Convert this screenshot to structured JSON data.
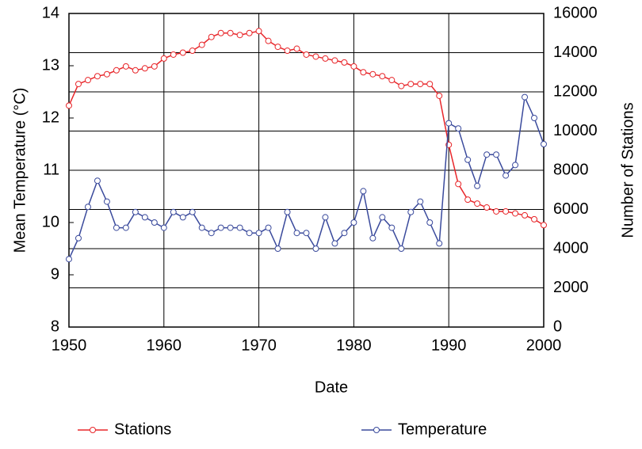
{
  "chart_data": {
    "type": "line",
    "x_label": "Date",
    "y_label": "Mean Temperature (°C)",
    "y2_label": "Number of Stations",
    "x": [
      1950,
      1951,
      1952,
      1953,
      1954,
      1955,
      1956,
      1957,
      1958,
      1959,
      1960,
      1961,
      1962,
      1963,
      1964,
      1965,
      1966,
      1967,
      1968,
      1969,
      1970,
      1971,
      1972,
      1973,
      1974,
      1975,
      1976,
      1977,
      1978,
      1979,
      1980,
      1981,
      1982,
      1983,
      1984,
      1985,
      1986,
      1987,
      1988,
      1989,
      1990,
      1991,
      1992,
      1993,
      1994,
      1995,
      1996,
      1997,
      1998,
      1999,
      2000
    ],
    "series": [
      {
        "name": "Stations",
        "color": "#e8262a",
        "axis": "y2",
        "values": [
          11300,
          12400,
          12600,
          12800,
          12900,
          13100,
          13300,
          13100,
          13200,
          13300,
          13700,
          13900,
          14000,
          14100,
          14400,
          14800,
          15000,
          15000,
          14900,
          15000,
          15100,
          14600,
          14300,
          14100,
          14200,
          13900,
          13800,
          13700,
          13600,
          13500,
          13300,
          13000,
          12900,
          12800,
          12600,
          12300,
          12400,
          12400,
          12400,
          11800,
          9300,
          7300,
          6500,
          6300,
          6100,
          5900,
          5900,
          5800,
          5700,
          5500,
          5200
        ]
      },
      {
        "name": "Temperature",
        "color": "#3a4a9c",
        "values": [
          9.3,
          9.7,
          10.3,
          10.8,
          10.4,
          9.9,
          9.9,
          10.2,
          10.1,
          10.0,
          9.9,
          10.2,
          10.1,
          10.2,
          9.9,
          9.8,
          9.9,
          9.9,
          9.9,
          9.8,
          9.8,
          9.9,
          9.5,
          10.2,
          9.8,
          9.8,
          9.5,
          10.1,
          9.6,
          9.8,
          10.0,
          10.6,
          9.7,
          10.1,
          9.9,
          9.5,
          10.2,
          10.4,
          10.0,
          9.6,
          11.9,
          11.8,
          11.2,
          10.7,
          11.3,
          11.3,
          10.9,
          11.1,
          12.4,
          12.0,
          11.5
        ]
      }
    ],
    "xlim": [
      1950,
      2000
    ],
    "xticks": [
      1950,
      1960,
      1970,
      1980,
      1990,
      2000
    ],
    "ylim": [
      8,
      14
    ],
    "yticks": [
      8,
      9,
      10,
      11,
      12,
      13,
      14
    ],
    "y2lim": [
      0,
      16000
    ],
    "y2ticks": [
      0,
      2000,
      4000,
      6000,
      8000,
      10000,
      12000,
      14000,
      16000
    ],
    "grid": true
  }
}
